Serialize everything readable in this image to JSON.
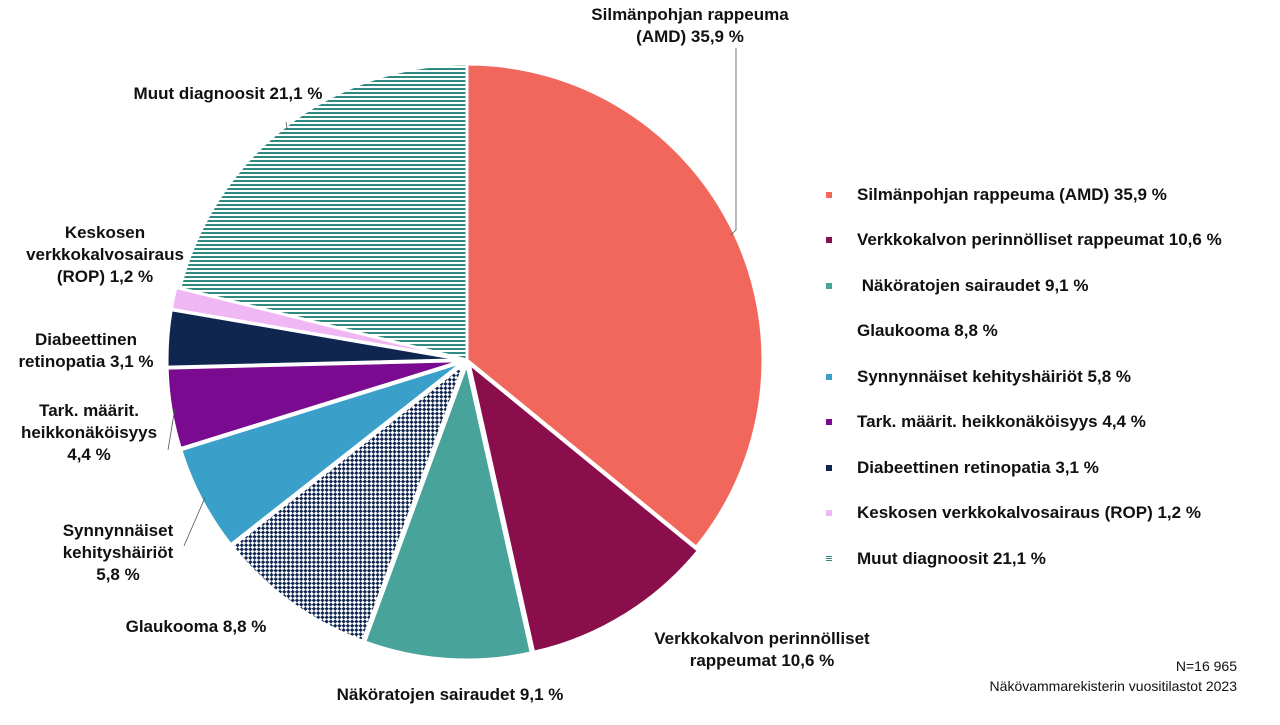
{
  "chart_data": {
    "type": "pie",
    "slices": [
      {
        "name": "Silmänpohjan rappeuma (AMD)",
        "value": 35.9,
        "color": "#f1675c",
        "pattern": "solid",
        "exploded": false
      },
      {
        "name": "Verkkokalvon perinnölliset rappeumat",
        "value": 10.6,
        "color": "#8b0e4c",
        "pattern": "solid",
        "exploded": true
      },
      {
        "name": "Näköratojen sairaudet",
        "value": 9.1,
        "color": "#48a39a",
        "pattern": "solid",
        "exploded": true
      },
      {
        "name": "Glaukooma",
        "value": 8.8,
        "color": "#0f2650",
        "pattern": "checker",
        "exploded": true
      },
      {
        "name": "Synnynnäiset kehityshäiriöt",
        "value": 5.8,
        "color": "#3a9fc9",
        "pattern": "solid",
        "exploded": true
      },
      {
        "name": "Tark. määrit. heikkonäköisyys",
        "value": 4.4,
        "color": "#7a0a8f",
        "pattern": "solid",
        "exploded": true
      },
      {
        "name": "Diabeettinen retinopatia",
        "value": 3.1,
        "color": "#0f2650",
        "pattern": "solid",
        "exploded": true
      },
      {
        "name": "Keskosen verkkokalvosairaus (ROP)",
        "value": 1.2,
        "color": "#efb8f4",
        "pattern": "solid",
        "exploded": true
      },
      {
        "name": "Muut diagnoosit",
        "value": 21.1,
        "color": "#2e8b80",
        "pattern": "stripes",
        "exploded": false
      }
    ],
    "slice_labels": [
      "Silmänpohjan rappeuma\n(AMD) 35,9 %",
      "Verkkokalvon perinnölliset\nrappeumat 10,6 %",
      "Näköratojen sairaudet 9,1 %",
      "Glaukooma 8,8 %",
      "Synnynnäiset\nkehityshäiriöt\n5,8 %",
      "Tark. määrit.\nheikkonäköisyys\n4,4 %",
      "Diabeettinen\nretinopatia 3,1 %",
      "Keskosen\nverkkokalvosairaus\n(ROP) 1,2 %",
      "Muut diagnoosit 21,1 %"
    ],
    "legend": [
      {
        "label": "Silmänpohjan rappeuma (AMD) 35,9 %",
        "color": "#f1675c",
        "pattern": "solid"
      },
      {
        "label": "Verkkokalvon perinnölliset rappeumat 10,6 %",
        "color": "#8b0e4c",
        "pattern": "solid"
      },
      {
        "label": " Näköratojen sairaudet 9,1 %",
        "color": "#48a39a",
        "pattern": "solid"
      },
      {
        "label": "Glaukooma 8,8 %",
        "color": "#ffffff",
        "pattern": "checker"
      },
      {
        "label": "Synnynnäiset kehityshäiriöt 5,8 %",
        "color": "#3a9fc9",
        "pattern": "solid"
      },
      {
        "label": "Tark. määrit. heikkonäköisyys 4,4 %",
        "color": "#7a0a8f",
        "pattern": "solid"
      },
      {
        "label": "Diabeettinen retinopatia 3,1 %",
        "color": "#0f2650",
        "pattern": "solid"
      },
      {
        "label": "Keskosen verkkokalvosairaus (ROP) 1,2 %",
        "color": "#efb8f4",
        "pattern": "solid"
      },
      {
        "label": "Muut diagnoosit 21,1 %",
        "color": "#2e8b80",
        "pattern": "stripes"
      }
    ],
    "legend_placement": "right"
  },
  "footer": {
    "n": "N=16 965",
    "source": "Näkövammarekisterin vuositilastot 2023"
  }
}
